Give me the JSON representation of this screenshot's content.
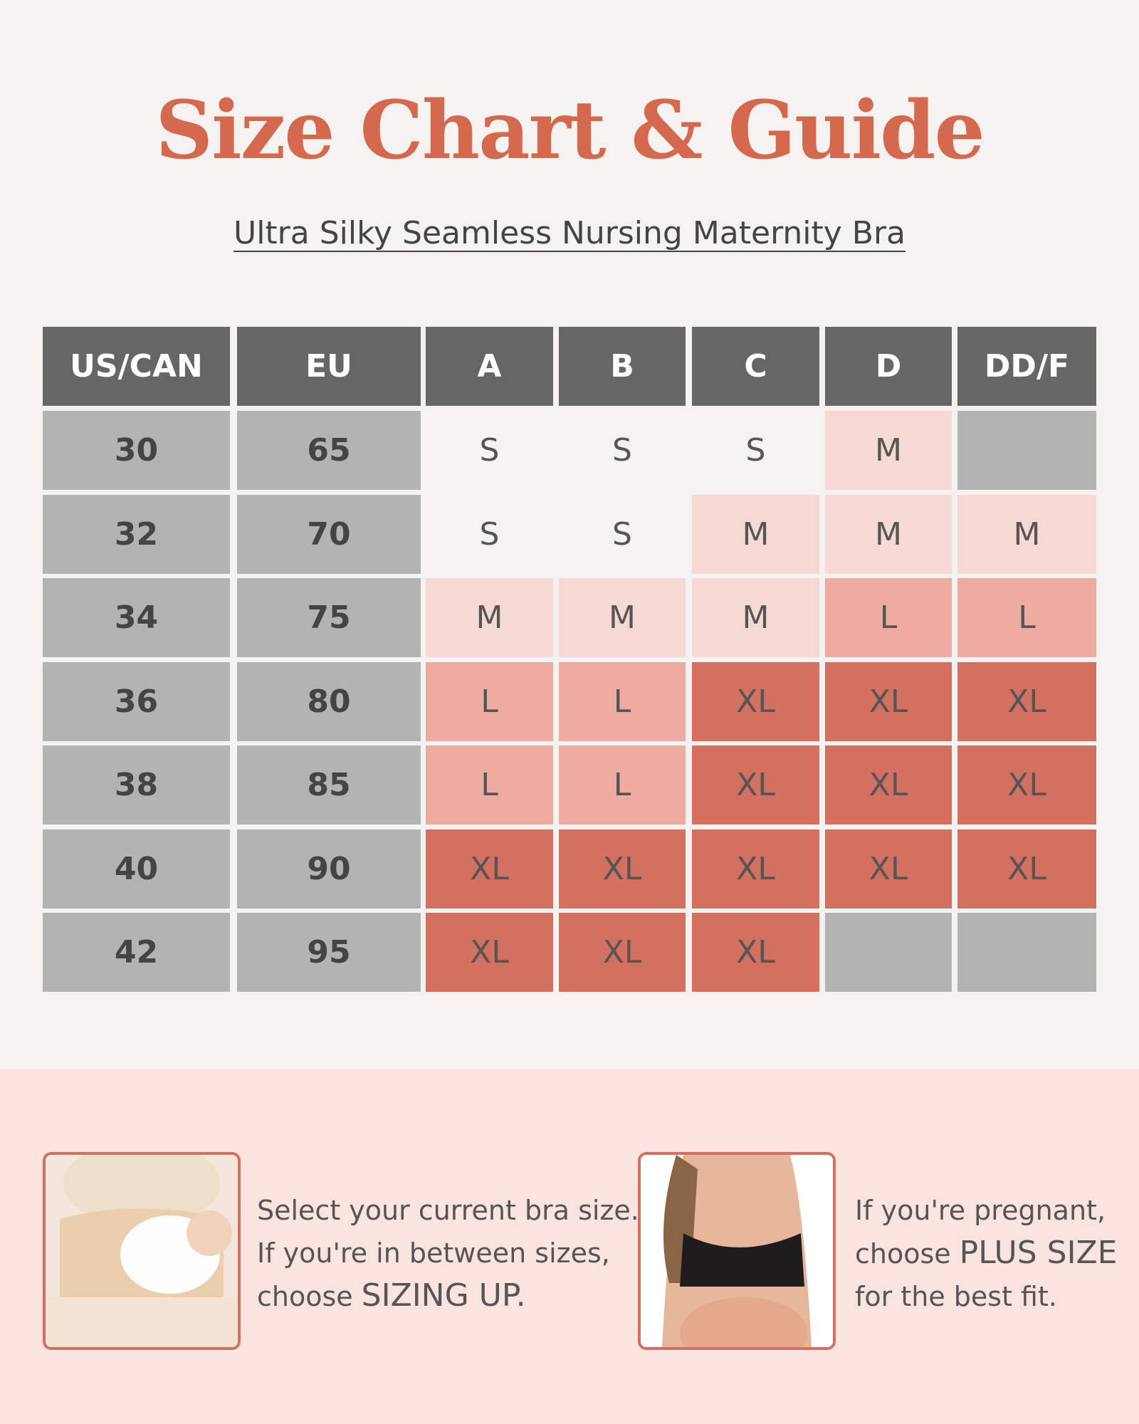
{
  "header": {
    "title": "Size Chart & Guide",
    "subtitle": "Ultra Silky Seamless Nursing Maternity Bra"
  },
  "table": {
    "columns": [
      "US/CAN",
      "EU",
      "A",
      "B",
      "C",
      "D",
      "DD/F"
    ],
    "rows": [
      [
        "30",
        "65",
        "S",
        "S",
        "S",
        "M",
        null
      ],
      [
        "32",
        "70",
        "S",
        "S",
        "M",
        "M",
        "M"
      ],
      [
        "34",
        "75",
        "M",
        "M",
        "M",
        "L",
        "L"
      ],
      [
        "36",
        "80",
        "L",
        "L",
        "XL",
        "XL",
        "XL"
      ],
      [
        "38",
        "85",
        "L",
        "L",
        "XL",
        "XL",
        "XL"
      ],
      [
        "40",
        "90",
        "XL",
        "XL",
        "XL",
        "XL",
        "XL"
      ],
      [
        "42",
        "95",
        "XL",
        "XL",
        "XL",
        null,
        null
      ]
    ],
    "size_colors": {
      "S": "#f5f3f1",
      "M": "#f7d9d3",
      "L": "#eeaca0",
      "XL": "#d47060"
    },
    "empty_color": "#b3b3b3"
  },
  "tips": [
    {
      "lines": [
        [
          "Select your current bra size."
        ],
        [
          "If you're in between sizes,"
        ],
        [
          "choose",
          "SIZING UP."
        ]
      ]
    },
    {
      "lines": [
        [
          "If you're pregnant,"
        ],
        [
          "choose",
          "PLUS SIZE"
        ],
        [
          "for the best fit."
        ]
      ]
    }
  ]
}
